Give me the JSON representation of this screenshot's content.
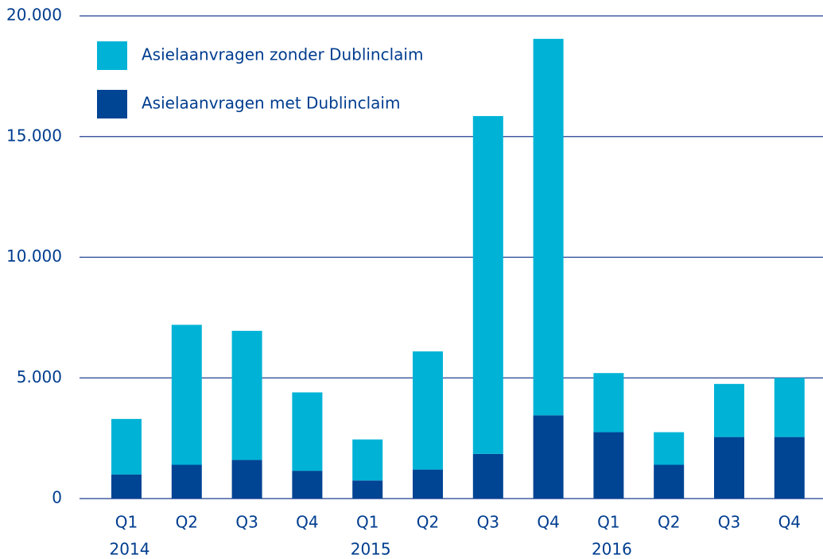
{
  "chart_data": {
    "type": "stacked_bar",
    "categories": [
      "Q1",
      "Q2",
      "Q3",
      "Q4",
      "Q1",
      "Q2",
      "Q3",
      "Q4",
      "Q1",
      "Q2",
      "Q3",
      "Q4"
    ],
    "group_labels": [
      "2014",
      null,
      null,
      null,
      "2015",
      null,
      null,
      null,
      "2016",
      null,
      null,
      null
    ],
    "series": [
      {
        "name": "Asielaanvragen met Dublinclaim",
        "color": "#004494",
        "values": [
          1000,
          1400,
          1600,
          1150,
          750,
          1200,
          1850,
          3450,
          2750,
          1400,
          2550,
          2550
        ]
      },
      {
        "name": "Asielaanvragen zonder Dublinclaim",
        "color": "#00b3d6",
        "values": [
          2300,
          5800,
          5350,
          3250,
          1700,
          4900,
          14000,
          15600,
          2450,
          1350,
          2200,
          2450
        ]
      }
    ],
    "ylim": [
      0,
      20000
    ],
    "yticks": [
      0,
      {
        "value": 5000,
        "label": "5.000"
      },
      {
        "value": 10000,
        "label": "10.000"
      },
      {
        "value": 15000,
        "label": "15.000"
      },
      {
        "value": 20000,
        "label": "20.000"
      }
    ],
    "grid": true
  }
}
